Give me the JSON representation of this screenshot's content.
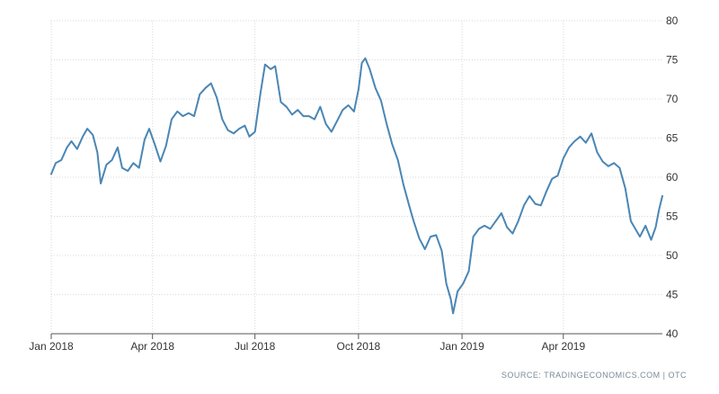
{
  "chart_data": {
    "type": "line",
    "title": "",
    "xlabel": "",
    "ylabel": "",
    "x_tick_labels": [
      {
        "label": "Jan 2018",
        "date": "2018-01-01"
      },
      {
        "label": "Apr 2018",
        "date": "2018-04-01"
      },
      {
        "label": "Jul 2018",
        "date": "2018-07-01"
      },
      {
        "label": "Oct 2018",
        "date": "2018-10-01"
      },
      {
        "label": "Jan 2019",
        "date": "2019-01-01"
      },
      {
        "label": "Apr 2019",
        "date": "2019-04-01"
      }
    ],
    "y_ticks": [
      40,
      45,
      50,
      55,
      60,
      65,
      70,
      75,
      80
    ],
    "xlim": [
      "2018-01-01",
      "2019-06-28"
    ],
    "ylim": [
      40,
      80
    ],
    "y_axis_position": "right",
    "grid": true,
    "legend": "none",
    "series": [
      {
        "color": "#4a86b4",
        "points": [
          [
            "2018-01-01",
            60.4
          ],
          [
            "2018-01-05",
            61.8
          ],
          [
            "2018-01-10",
            62.2
          ],
          [
            "2018-01-15",
            63.8
          ],
          [
            "2018-01-19",
            64.6
          ],
          [
            "2018-01-24",
            63.6
          ],
          [
            "2018-01-29",
            65.2
          ],
          [
            "2018-02-02",
            66.2
          ],
          [
            "2018-02-07",
            65.4
          ],
          [
            "2018-02-11",
            63.2
          ],
          [
            "2018-02-14",
            59.2
          ],
          [
            "2018-02-19",
            61.6
          ],
          [
            "2018-02-24",
            62.2
          ],
          [
            "2018-03-01",
            63.8
          ],
          [
            "2018-03-05",
            61.2
          ],
          [
            "2018-03-10",
            60.8
          ],
          [
            "2018-03-15",
            61.8
          ],
          [
            "2018-03-20",
            61.2
          ],
          [
            "2018-03-25",
            64.8
          ],
          [
            "2018-03-29",
            66.2
          ],
          [
            "2018-04-03",
            64.2
          ],
          [
            "2018-04-08",
            62.0
          ],
          [
            "2018-04-13",
            64.0
          ],
          [
            "2018-04-18",
            67.4
          ],
          [
            "2018-04-23",
            68.4
          ],
          [
            "2018-04-28",
            67.8
          ],
          [
            "2018-05-03",
            68.2
          ],
          [
            "2018-05-08",
            67.8
          ],
          [
            "2018-05-13",
            70.6
          ],
          [
            "2018-05-18",
            71.4
          ],
          [
            "2018-05-23",
            72.0
          ],
          [
            "2018-05-28",
            70.2
          ],
          [
            "2018-06-02",
            67.4
          ],
          [
            "2018-06-07",
            66.0
          ],
          [
            "2018-06-12",
            65.6
          ],
          [
            "2018-06-17",
            66.2
          ],
          [
            "2018-06-22",
            66.6
          ],
          [
            "2018-06-26",
            65.2
          ],
          [
            "2018-07-01",
            65.8
          ],
          [
            "2018-07-06",
            70.8
          ],
          [
            "2018-07-10",
            74.4
          ],
          [
            "2018-07-15",
            73.8
          ],
          [
            "2018-07-19",
            74.2
          ],
          [
            "2018-07-24",
            69.6
          ],
          [
            "2018-07-29",
            69.0
          ],
          [
            "2018-08-03",
            68.0
          ],
          [
            "2018-08-08",
            68.6
          ],
          [
            "2018-08-13",
            67.8
          ],
          [
            "2018-08-18",
            67.8
          ],
          [
            "2018-08-23",
            67.4
          ],
          [
            "2018-08-28",
            69.0
          ],
          [
            "2018-09-02",
            66.8
          ],
          [
            "2018-09-07",
            65.8
          ],
          [
            "2018-09-12",
            67.2
          ],
          [
            "2018-09-17",
            68.6
          ],
          [
            "2018-09-22",
            69.2
          ],
          [
            "2018-09-27",
            68.4
          ],
          [
            "2018-10-01",
            71.2
          ],
          [
            "2018-10-04",
            74.6
          ],
          [
            "2018-10-07",
            75.2
          ],
          [
            "2018-10-11",
            73.8
          ],
          [
            "2018-10-16",
            71.4
          ],
          [
            "2018-10-21",
            69.8
          ],
          [
            "2018-10-26",
            66.8
          ],
          [
            "2018-10-31",
            64.2
          ],
          [
            "2018-11-05",
            62.2
          ],
          [
            "2018-11-10",
            59.0
          ],
          [
            "2018-11-15",
            56.4
          ],
          [
            "2018-11-19",
            54.4
          ],
          [
            "2018-11-24",
            52.2
          ],
          [
            "2018-11-29",
            50.8
          ],
          [
            "2018-12-04",
            52.4
          ],
          [
            "2018-12-09",
            52.6
          ],
          [
            "2018-12-14",
            50.6
          ],
          [
            "2018-12-18",
            46.4
          ],
          [
            "2018-12-22",
            44.4
          ],
          [
            "2018-12-24",
            42.6
          ],
          [
            "2018-12-28",
            45.4
          ],
          [
            "2019-01-02",
            46.4
          ],
          [
            "2019-01-07",
            48.0
          ],
          [
            "2019-01-11",
            52.4
          ],
          [
            "2019-01-16",
            53.4
          ],
          [
            "2019-01-21",
            53.8
          ],
          [
            "2019-01-26",
            53.4
          ],
          [
            "2019-01-31",
            54.4
          ],
          [
            "2019-02-05",
            55.4
          ],
          [
            "2019-02-10",
            53.6
          ],
          [
            "2019-02-15",
            52.8
          ],
          [
            "2019-02-20",
            54.4
          ],
          [
            "2019-02-25",
            56.4
          ],
          [
            "2019-03-02",
            57.6
          ],
          [
            "2019-03-07",
            56.6
          ],
          [
            "2019-03-12",
            56.4
          ],
          [
            "2019-03-17",
            58.2
          ],
          [
            "2019-03-22",
            59.8
          ],
          [
            "2019-03-27",
            60.2
          ],
          [
            "2019-04-01",
            62.4
          ],
          [
            "2019-04-06",
            63.8
          ],
          [
            "2019-04-11",
            64.6
          ],
          [
            "2019-04-16",
            65.2
          ],
          [
            "2019-04-21",
            64.4
          ],
          [
            "2019-04-26",
            65.6
          ],
          [
            "2019-05-01",
            63.2
          ],
          [
            "2019-05-06",
            62.0
          ],
          [
            "2019-05-11",
            61.4
          ],
          [
            "2019-05-16",
            61.8
          ],
          [
            "2019-05-21",
            61.2
          ],
          [
            "2019-05-26",
            58.6
          ],
          [
            "2019-05-31",
            54.4
          ],
          [
            "2019-06-04",
            53.4
          ],
          [
            "2019-06-08",
            52.4
          ],
          [
            "2019-06-13",
            53.8
          ],
          [
            "2019-06-18",
            52.0
          ],
          [
            "2019-06-22",
            53.6
          ],
          [
            "2019-06-25",
            55.8
          ],
          [
            "2019-06-28",
            57.6
          ]
        ]
      }
    ]
  },
  "footer": {
    "source": "SOURCE: TRADINGECONOMICS.COM | OTC"
  }
}
